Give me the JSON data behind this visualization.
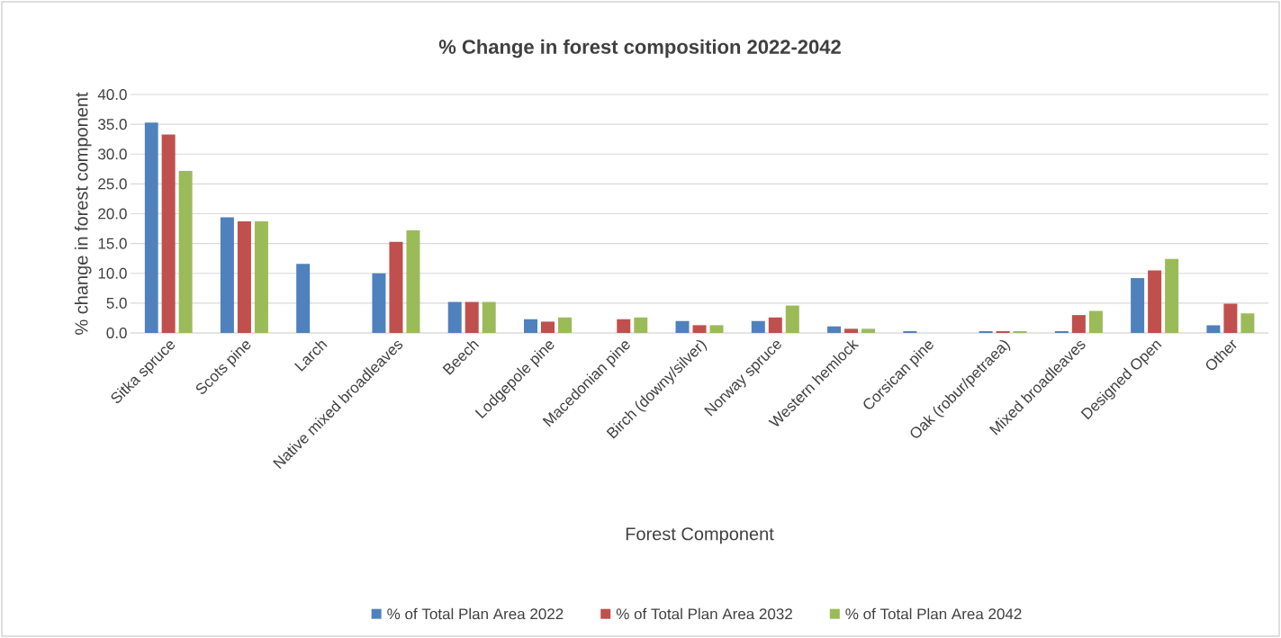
{
  "chart_data": {
    "type": "bar",
    "title": "% Change in forest composition 2022-2042",
    "xlabel": "Forest Component",
    "ylabel": "% change in forest component",
    "categories": [
      "Sitka spruce",
      "Scots pine",
      "Larch",
      "Native mixed broadleaves",
      "Beech",
      "Lodgepole pine",
      "Macedonian pine",
      "Birch (downy/silver)",
      "Norway spruce",
      "Western hemlock",
      "Corsican pine",
      "Oak (robur/petraea)",
      "Mixed broadleaves",
      "Designed Open",
      "Other"
    ],
    "series": [
      {
        "name": "% of Total Plan Area 2022",
        "color": "#4f81bd",
        "values": [
          35.3,
          19.4,
          11.6,
          10.0,
          5.2,
          2.3,
          null,
          2.0,
          2.0,
          1.1,
          0.3,
          0.3,
          0.3,
          9.2,
          1.3
        ]
      },
      {
        "name": "% of Total Plan Area 2032",
        "color": "#c0504d",
        "values": [
          33.3,
          18.7,
          null,
          15.3,
          5.2,
          1.9,
          2.3,
          1.3,
          2.6,
          0.7,
          null,
          0.3,
          3.0,
          10.5,
          4.9
        ]
      },
      {
        "name": "% of Total Plan Area 2042",
        "color": "#9bbb59",
        "values": [
          27.2,
          18.7,
          null,
          17.2,
          5.2,
          2.6,
          2.6,
          1.3,
          4.6,
          0.7,
          null,
          0.3,
          3.7,
          12.4,
          3.3
        ]
      }
    ],
    "ylim": [
      0,
      40
    ],
    "yticks": [
      {
        "value": 0,
        "label": "0.0"
      },
      {
        "value": 5,
        "label": "5.0"
      },
      {
        "value": 10,
        "label": "10.0"
      },
      {
        "value": 15,
        "label": "15.0"
      },
      {
        "value": 20,
        "label": "20.0"
      },
      {
        "value": 25,
        "label": "25.0"
      },
      {
        "value": 30,
        "label": "30.0"
      },
      {
        "value": 35,
        "label": "35.0"
      },
      {
        "value": 40,
        "label": "40.0"
      }
    ],
    "grid": "y",
    "legend": "bottom"
  }
}
